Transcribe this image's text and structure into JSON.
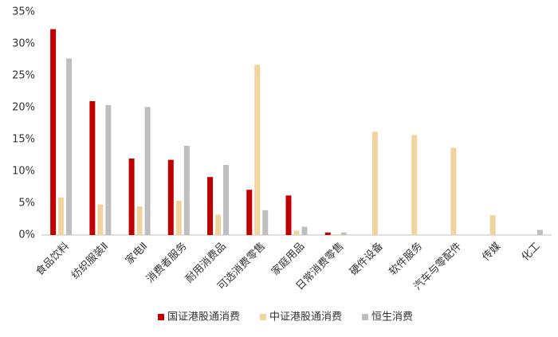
{
  "chart_data": {
    "type": "bar",
    "categories": [
      "食品饮料",
      "纺织服装Ⅱ",
      "家电Ⅱ",
      "消费者服务",
      "耐用消费品",
      "可选消费零售",
      "家庭用品",
      "日常消费零售",
      "硬件设备",
      "软件服务",
      "汽车与零配件",
      "传媒",
      "化工"
    ],
    "series": [
      {
        "name": "国证港股通消费",
        "color": "#c00000",
        "values": [
          32.3,
          21.0,
          12.0,
          11.8,
          9.1,
          7.1,
          6.2,
          0.4,
          null,
          null,
          null,
          null,
          null
        ]
      },
      {
        "name": "中证港股通消费",
        "color": "#f0d49e",
        "values": [
          5.9,
          4.8,
          4.5,
          5.4,
          3.2,
          26.7,
          0.7,
          0.1,
          16.2,
          15.7,
          13.7,
          3.1,
          null
        ]
      },
      {
        "name": "恒生消费",
        "color": "#bfbfbf",
        "values": [
          27.7,
          20.4,
          20.1,
          14.0,
          11.0,
          3.9,
          1.3,
          0.4,
          null,
          null,
          null,
          null,
          0.8
        ]
      }
    ],
    "ylim": [
      0,
      35
    ],
    "yticks": [
      {
        "value": 0,
        "label": "0%"
      },
      {
        "value": 5,
        "label": "5%"
      },
      {
        "value": 10,
        "label": "10%"
      },
      {
        "value": 15,
        "label": "15%"
      },
      {
        "value": 20,
        "label": "20%"
      },
      {
        "value": 25,
        "label": "25%"
      },
      {
        "value": 30,
        "label": "30%"
      },
      {
        "value": 35,
        "label": "35%"
      }
    ],
    "grid": false,
    "legend": "bottom"
  }
}
